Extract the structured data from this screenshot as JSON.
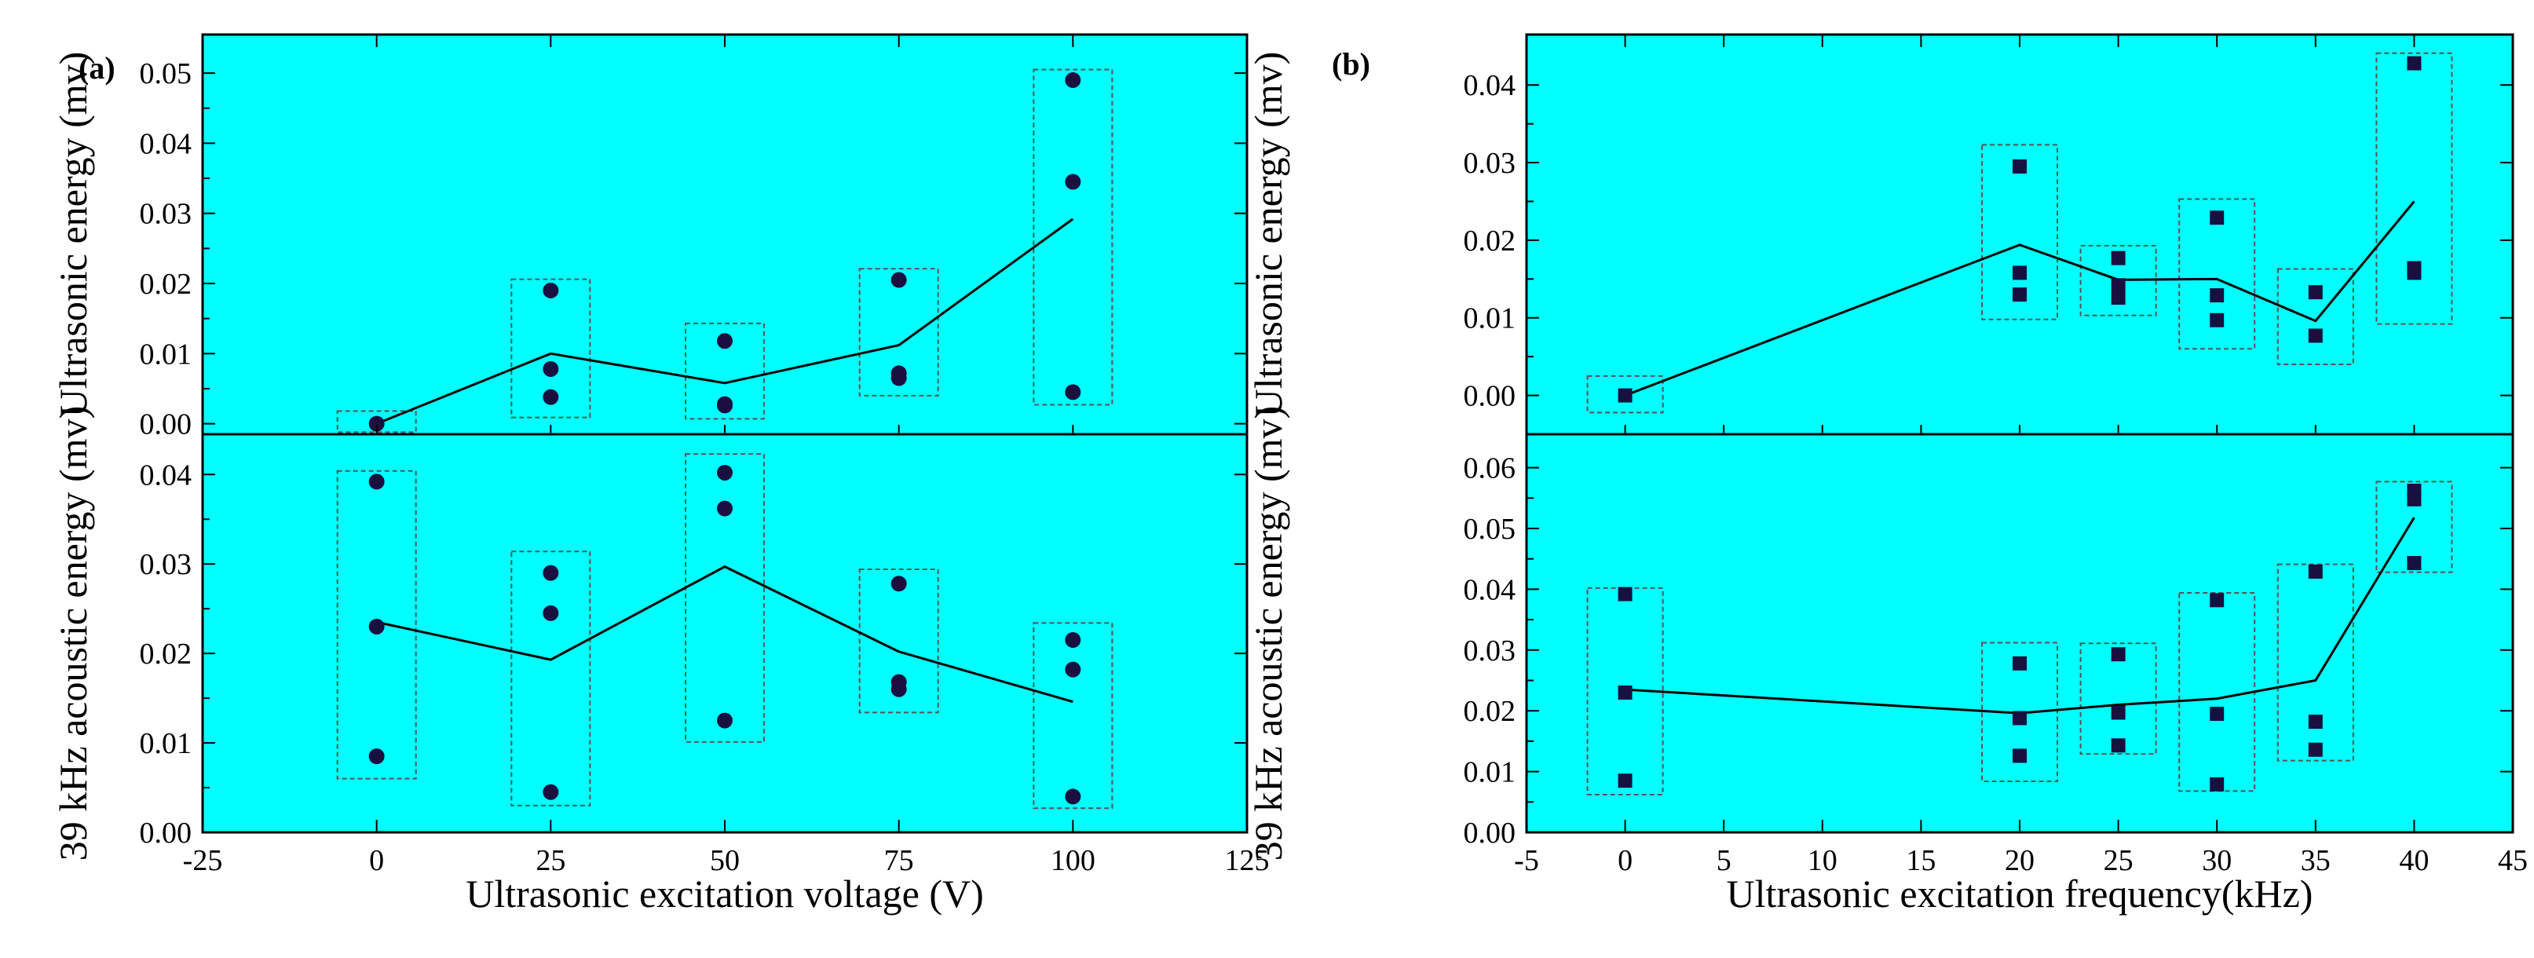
{
  "figure": {
    "background": "#ffffff",
    "plot_bg": "#00ffff",
    "marker_color": "#1a1040"
  },
  "chart_data": [
    {
      "type": "scatter",
      "panel_label": "(a)",
      "xlabel": "Ultrasonic excitation voltage (V)",
      "xlim": [
        -25,
        125
      ],
      "xticks": [
        -25,
        0,
        25,
        50,
        75,
        100,
        125
      ],
      "xtick_labels": [
        "-25",
        "0",
        "25",
        "50",
        "75",
        "100",
        "125"
      ],
      "marker": "circle",
      "subplots": [
        {
          "ylabel": "Ultrasonic energy (mv)",
          "ylim": [
            -0.0015,
            0.0555
          ],
          "yticks": [
            0.0,
            0.01,
            0.02,
            0.03,
            0.04,
            0.05
          ],
          "ytick_labels": [
            "0.00",
            "0.01",
            "0.02",
            "0.03",
            "0.04",
            "0.05"
          ],
          "points": [
            {
              "x": 0,
              "ys": [
                0.0
              ]
            },
            {
              "x": 25,
              "ys": [
                0.019,
                0.0078,
                0.0038
              ]
            },
            {
              "x": 50,
              "ys": [
                0.0118,
                0.0028,
                0.0026
              ]
            },
            {
              "x": 75,
              "ys": [
                0.0205,
                0.0072,
                0.0065
              ]
            },
            {
              "x": 100,
              "ys": [
                0.049,
                0.0345,
                0.0045
              ]
            }
          ],
          "mean_line": {
            "x": [
              0,
              25,
              50,
              75,
              100
            ],
            "y": [
              0.0,
              0.01,
              0.0058,
              0.0112,
              0.0292
            ]
          },
          "boxes": [
            {
              "x": 0,
              "y_low": -0.0012,
              "y_high": 0.0018
            },
            {
              "x": 25,
              "y_low": 0.0009,
              "y_high": 0.0206
            },
            {
              "x": 50,
              "y_low": 0.0007,
              "y_high": 0.0143
            },
            {
              "x": 75,
              "y_low": 0.004,
              "y_high": 0.0221
            },
            {
              "x": 100,
              "y_low": 0.0027,
              "y_high": 0.0505
            }
          ]
        },
        {
          "ylabel": "39 kHz acoustic energy (mv)",
          "ylim": [
            0.0,
            0.0445
          ],
          "yticks": [
            0.0,
            0.01,
            0.02,
            0.03,
            0.04
          ],
          "ytick_labels": [
            "0.00",
            "0.01",
            "0.02",
            "0.03",
            "0.04"
          ],
          "points": [
            {
              "x": 0,
              "ys": [
                0.0392,
                0.023,
                0.0085
              ]
            },
            {
              "x": 25,
              "ys": [
                0.029,
                0.0245,
                0.0045
              ]
            },
            {
              "x": 50,
              "ys": [
                0.0402,
                0.0362,
                0.0125
              ]
            },
            {
              "x": 75,
              "ys": [
                0.0278,
                0.0168,
                0.016
              ]
            },
            {
              "x": 100,
              "ys": [
                0.0215,
                0.0182,
                0.004
              ]
            }
          ],
          "mean_line": {
            "x": [
              0,
              25,
              50,
              75,
              100
            ],
            "y": [
              0.0235,
              0.0193,
              0.0297,
              0.0202,
              0.0146
            ]
          },
          "boxes": [
            {
              "x": 0,
              "y_low": 0.006,
              "y_high": 0.0404
            },
            {
              "x": 25,
              "y_low": 0.003,
              "y_high": 0.0314
            },
            {
              "x": 50,
              "y_low": 0.0101,
              "y_high": 0.0423
            },
            {
              "x": 75,
              "y_low": 0.0134,
              "y_high": 0.0294
            },
            {
              "x": 100,
              "y_low": 0.0027,
              "y_high": 0.0234
            }
          ]
        }
      ]
    },
    {
      "type": "scatter",
      "panel_label": "(b)",
      "xlabel": "Ultrasonic excitation frequency(kHz)",
      "xlim": [
        -5,
        45
      ],
      "xticks": [
        -5,
        0,
        5,
        10,
        15,
        20,
        25,
        30,
        35,
        40,
        45
      ],
      "xtick_labels": [
        "-5",
        "0",
        "5",
        "10",
        "15",
        "20",
        "25",
        "30",
        "35",
        "40",
        "45"
      ],
      "marker": "square",
      "subplots": [
        {
          "ylabel": "Ultrasonic energy (mv)",
          "ylim": [
            -0.005,
            0.0465
          ],
          "yticks": [
            0.0,
            0.01,
            0.02,
            0.03,
            0.04
          ],
          "ytick_labels": [
            "0.00",
            "0.01",
            "0.02",
            "0.03",
            "0.04"
          ],
          "points": [
            {
              "x": 0,
              "ys": [
                0.0
              ]
            },
            {
              "x": 20,
              "ys": [
                0.0295,
                0.0158,
                0.013
              ]
            },
            {
              "x": 25,
              "ys": [
                0.0177,
                0.0142,
                0.0126
              ]
            },
            {
              "x": 30,
              "ys": [
                0.0229,
                0.0129,
                0.0097
              ]
            },
            {
              "x": 35,
              "ys": [
                0.0133,
                0.0077
              ]
            },
            {
              "x": 40,
              "ys": [
                0.0428,
                0.0164,
                0.0158
              ]
            }
          ],
          "mean_line": {
            "x": [
              0,
              20,
              25,
              30,
              35,
              40
            ],
            "y": [
              0.0,
              0.0194,
              0.0149,
              0.015,
              0.0096,
              0.025
            ]
          },
          "boxes": [
            {
              "x": 0,
              "y_low": -0.0022,
              "y_high": 0.0025
            },
            {
              "x": 20,
              "y_low": 0.0098,
              "y_high": 0.0323
            },
            {
              "x": 25,
              "y_low": 0.0103,
              "y_high": 0.0193
            },
            {
              "x": 30,
              "y_low": 0.006,
              "y_high": 0.0253
            },
            {
              "x": 35,
              "y_low": 0.004,
              "y_high": 0.0163
            },
            {
              "x": 40,
              "y_low": 0.0092,
              "y_high": 0.0441
            }
          ]
        },
        {
          "ylabel": "39 kHz acoustic energy (mv)",
          "ylim": [
            0.0,
            0.0655
          ],
          "yticks": [
            0.0,
            0.01,
            0.02,
            0.03,
            0.04,
            0.05,
            0.06
          ],
          "ytick_labels": [
            "0.00",
            "0.01",
            "0.02",
            "0.03",
            "0.04",
            "0.05",
            "0.06"
          ],
          "points": [
            {
              "x": 0,
              "ys": [
                0.0392,
                0.023,
                0.0085
              ]
            },
            {
              "x": 20,
              "ys": [
                0.0278,
                0.0188,
                0.0126
              ]
            },
            {
              "x": 25,
              "ys": [
                0.0293,
                0.0197,
                0.0143
              ]
            },
            {
              "x": 30,
              "ys": [
                0.0382,
                0.0195,
                0.0079
              ]
            },
            {
              "x": 35,
              "ys": [
                0.0429,
                0.0182,
                0.0136
              ]
            },
            {
              "x": 40,
              "ys": [
                0.0562,
                0.0548,
                0.0443
              ]
            }
          ],
          "mean_line": {
            "x": [
              0,
              20,
              25,
              30,
              35,
              40
            ],
            "y": [
              0.0235,
              0.0196,
              0.021,
              0.022,
              0.025,
              0.0518
            ]
          },
          "boxes": [
            {
              "x": 0,
              "y_low": 0.0062,
              "y_high": 0.0402
            },
            {
              "x": 20,
              "y_low": 0.0084,
              "y_high": 0.0312
            },
            {
              "x": 25,
              "y_low": 0.0129,
              "y_high": 0.0311
            },
            {
              "x": 30,
              "y_low": 0.0068,
              "y_high": 0.0394
            },
            {
              "x": 35,
              "y_low": 0.0118,
              "y_high": 0.0441
            },
            {
              "x": 40,
              "y_low": 0.0428,
              "y_high": 0.0577
            }
          ]
        }
      ]
    }
  ]
}
